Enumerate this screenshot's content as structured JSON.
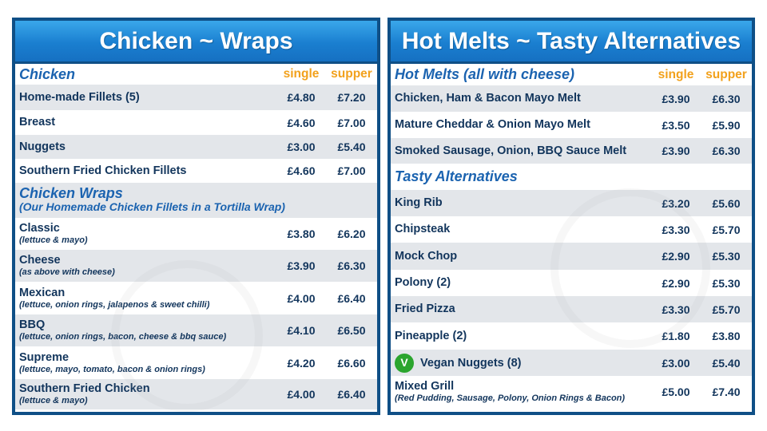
{
  "left": {
    "title": "Chicken ~ Wraps",
    "col_single": "single",
    "col_supper": "supper",
    "section1": "Chicken",
    "chicken": [
      {
        "name": "Home-made Fillets (5)",
        "single": "£4.80",
        "supper": "£7.20"
      },
      {
        "name": "Breast",
        "single": "£4.60",
        "supper": "£7.00"
      },
      {
        "name": "Nuggets",
        "single": "£3.00",
        "supper": "£5.40"
      },
      {
        "name": "Southern Fried Chicken Fillets",
        "single": "£4.60",
        "supper": "£7.00"
      }
    ],
    "section2": "Chicken Wraps",
    "section2_sub": "(Our Homemade Chicken Fillets in a Tortilla Wrap)",
    "wraps": [
      {
        "name": "Classic",
        "desc": "(lettuce & mayo)",
        "single": "£3.80",
        "supper": "£6.20"
      },
      {
        "name": "Cheese",
        "desc": "(as above with cheese)",
        "single": "£3.90",
        "supper": "£6.30"
      },
      {
        "name": "Mexican",
        "desc": "(lettuce, onion rings, jalapenos & sweet chilli)",
        "single": "£4.00",
        "supper": "£6.40"
      },
      {
        "name": "BBQ",
        "desc": "(lettuce, onion rings, bacon, cheese & bbq sauce)",
        "single": "£4.10",
        "supper": "£6.50"
      },
      {
        "name": "Supreme",
        "desc": "(lettuce, mayo, tomato, bacon & onion rings)",
        "single": "£4.20",
        "supper": "£6.60"
      },
      {
        "name": "Southern Fried Chicken",
        "desc": "(lettuce & mayo)",
        "single": "£4.00",
        "supper": "£6.40"
      }
    ]
  },
  "right": {
    "title": "Hot Melts ~ Tasty Alternatives",
    "col_single": "single",
    "col_supper": "supper",
    "section1": "Hot Melts (all with cheese)",
    "melts": [
      {
        "name": "Chicken, Ham & Bacon Mayo Melt",
        "single": "£3.90",
        "supper": "£6.30"
      },
      {
        "name": "Mature Cheddar & Onion Mayo Melt",
        "single": "£3.50",
        "supper": "£5.90"
      },
      {
        "name": "Smoked Sausage, Onion, BBQ Sauce Melt",
        "single": "£3.90",
        "supper": "£6.30"
      }
    ],
    "section2": "Tasty Alternatives",
    "alternatives": [
      {
        "name": "King Rib",
        "single": "£3.20",
        "supper": "£5.60"
      },
      {
        "name": "Chipsteak",
        "single": "£3.30",
        "supper": "£5.70"
      },
      {
        "name": "Mock Chop",
        "single": "£2.90",
        "supper": "£5.30"
      },
      {
        "name": "Polony (2)",
        "single": "£2.90",
        "supper": "£5.30"
      },
      {
        "name": "Fried Pizza",
        "single": "£3.30",
        "supper": "£5.70"
      },
      {
        "name": "Pineapple (2)",
        "single": "£1.80",
        "supper": "£3.80"
      },
      {
        "name": "Vegan Nuggets (8)",
        "single": "£3.00",
        "supper": "£5.40",
        "vegan": "V"
      },
      {
        "name": "Mixed Grill",
        "desc": "(Red Pudding, Sausage, Polony, Onion Rings & Bacon)",
        "single": "£5.00",
        "supper": "£7.40"
      }
    ]
  },
  "colors": {
    "panel_border": "#0f4f86",
    "banner": "#1a7fd0",
    "text": "#12355c",
    "heading": "#1b63b0",
    "column_label": "#f2a11c",
    "vegan": "#2ba52e"
  }
}
